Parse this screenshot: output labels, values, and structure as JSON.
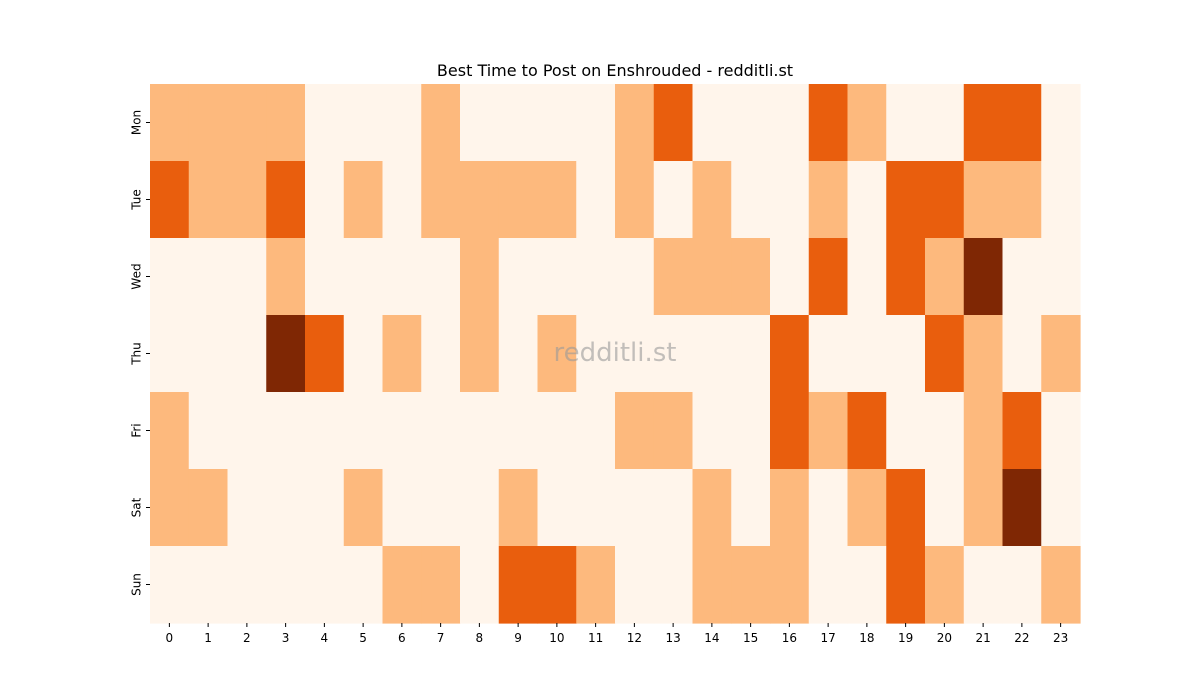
{
  "chart_data": {
    "type": "heatmap",
    "title": "Best Time to Post on Enshrouded - redditli.st",
    "watermark": "redditli.st",
    "xlabel": "",
    "ylabel": "",
    "x_categories": [
      "0",
      "1",
      "2",
      "3",
      "4",
      "5",
      "6",
      "7",
      "8",
      "9",
      "10",
      "11",
      "12",
      "13",
      "14",
      "15",
      "16",
      "17",
      "18",
      "19",
      "20",
      "21",
      "22",
      "23"
    ],
    "y_categories": [
      "Mon",
      "Tue",
      "Wed",
      "Thu",
      "Fri",
      "Sat",
      "Sun"
    ],
    "values": [
      [
        1,
        1,
        1,
        1,
        0,
        0,
        0,
        1,
        0,
        0,
        0,
        0,
        1,
        2,
        0,
        0,
        0,
        2,
        1,
        0,
        0,
        2,
        2,
        0
      ],
      [
        2,
        1,
        1,
        2,
        0,
        1,
        0,
        1,
        1,
        1,
        1,
        0,
        1,
        0,
        1,
        0,
        0,
        1,
        0,
        2,
        2,
        1,
        1,
        0
      ],
      [
        0,
        0,
        0,
        1,
        0,
        0,
        0,
        0,
        1,
        0,
        0,
        0,
        0,
        1,
        1,
        1,
        0,
        2,
        0,
        2,
        1,
        3,
        0,
        0
      ],
      [
        0,
        0,
        0,
        3,
        2,
        0,
        1,
        0,
        1,
        0,
        1,
        0,
        0,
        0,
        0,
        0,
        2,
        0,
        0,
        0,
        2,
        1,
        0,
        1
      ],
      [
        1,
        0,
        0,
        0,
        0,
        0,
        0,
        0,
        0,
        0,
        0,
        0,
        1,
        1,
        0,
        0,
        2,
        1,
        2,
        0,
        0,
        1,
        2,
        0
      ],
      [
        1,
        1,
        0,
        0,
        0,
        1,
        0,
        0,
        0,
        1,
        0,
        0,
        0,
        0,
        1,
        0,
        1,
        0,
        1,
        2,
        0,
        1,
        3,
        0
      ],
      [
        0,
        0,
        0,
        0,
        0,
        0,
        1,
        1,
        0,
        2,
        2,
        1,
        0,
        0,
        1,
        1,
        1,
        0,
        0,
        2,
        1,
        0,
        0,
        1
      ]
    ],
    "colors": [
      "#fff5eb",
      "#fdb97d",
      "#e95e0d",
      "#7f2704"
    ],
    "colorbar": false
  }
}
